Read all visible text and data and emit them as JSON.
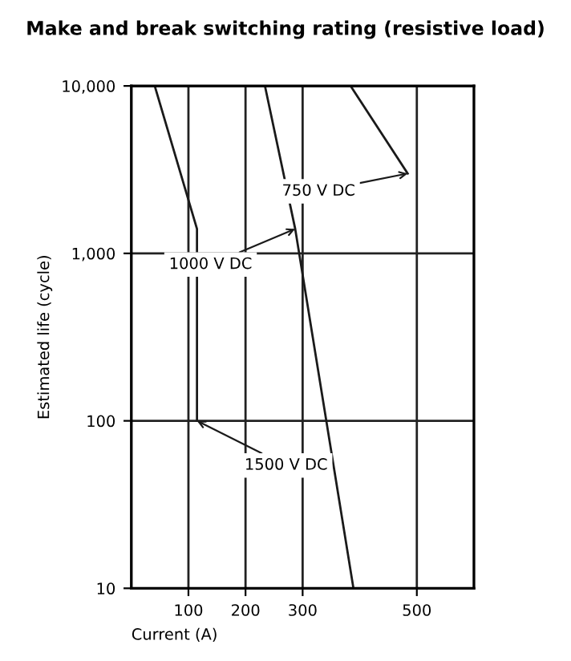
{
  "chart_data": {
    "type": "line",
    "title": "Make and break switching rating (resistive load)",
    "xlabel": "Current (A)",
    "ylabel": "Estimated life (cycle)",
    "xlim": [
      0,
      600
    ],
    "xticks": [
      100,
      200,
      300,
      500
    ],
    "ylim": [
      10,
      10000
    ],
    "yticks": [
      {
        "value": 10,
        "label": "10"
      },
      {
        "value": 100,
        "label": "100"
      },
      {
        "value": 1000,
        "label": "1,000"
      },
      {
        "value": 10000,
        "label": "10,000"
      }
    ],
    "log": "y",
    "grid": true,
    "marker": "none",
    "line_style": "solid",
    "series": [
      {
        "color": "#1a1a1a",
        "x": [
          41,
          115,
          115
        ],
        "values": [
          10000,
          1400,
          100
        ]
      },
      {
        "color": "#1a1a1a",
        "x": [
          234,
          287,
          389
        ],
        "values": [
          10000,
          1400,
          10
        ]
      },
      {
        "color": "#1a1a1a",
        "x": [
          384,
          484
        ],
        "values": [
          10000,
          3000
        ]
      }
    ],
    "annotations": [
      {
        "text": "750 V DC",
        "x": 484,
        "y": 3000
      },
      {
        "text": "1000 V DC",
        "x": 287,
        "y": 1400
      },
      {
        "text": "1500 V DC",
        "x": 115,
        "y": 100
      }
    ]
  }
}
